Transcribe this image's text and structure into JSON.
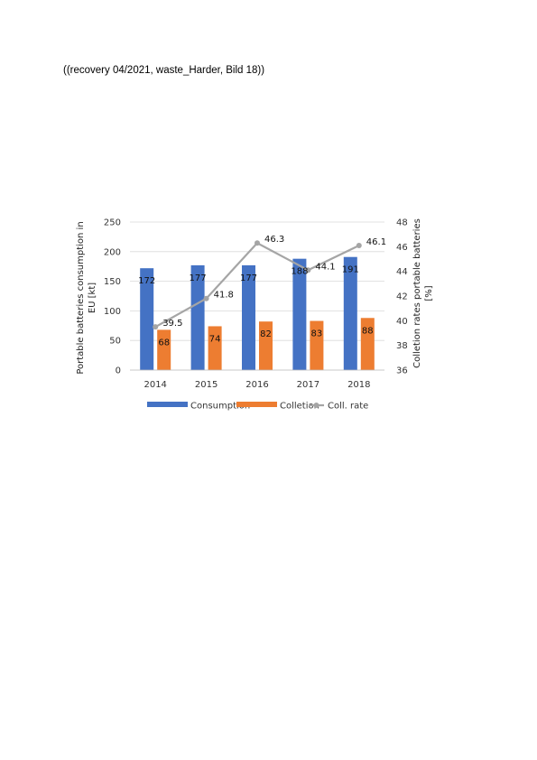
{
  "caption": "((recovery 04/2021, waste_Harder, Bild 18))",
  "chart_data": {
    "type": "bar",
    "categories": [
      "2014",
      "2015",
      "2016",
      "2017",
      "2018"
    ],
    "series": [
      {
        "name": "Consumption",
        "kind": "bar",
        "axis": "left",
        "color": "#4472C4",
        "values": [
          172,
          177,
          177,
          188,
          191
        ]
      },
      {
        "name": "Colletion",
        "kind": "bar",
        "axis": "left",
        "color": "#ED7D31",
        "values": [
          68,
          74,
          82,
          83,
          88
        ]
      },
      {
        "name": "Coll. rate",
        "kind": "line",
        "axis": "right",
        "color": "#A5A5A5",
        "values": [
          39.5,
          41.8,
          46.3,
          44.1,
          46.1
        ]
      }
    ],
    "ylabel_lines": [
      "Portable batteries consumption in",
      "EU [kt]"
    ],
    "y2label_lines": [
      "Colletion rates  portable batteries",
      "[%]"
    ],
    "ylim": [
      0,
      250
    ],
    "yticks": [
      "0",
      "50",
      "100",
      "150",
      "200",
      "250"
    ],
    "y2lim": [
      36,
      48
    ],
    "y2ticks": [
      "36",
      "38",
      "40",
      "42",
      "44",
      "46",
      "48"
    ],
    "grid": true,
    "legend_position": "bottom",
    "bar_label_position": "inside-top",
    "line_labels": [
      "39.5",
      "41.8",
      "46.3",
      "44.1",
      "46.1"
    ]
  }
}
